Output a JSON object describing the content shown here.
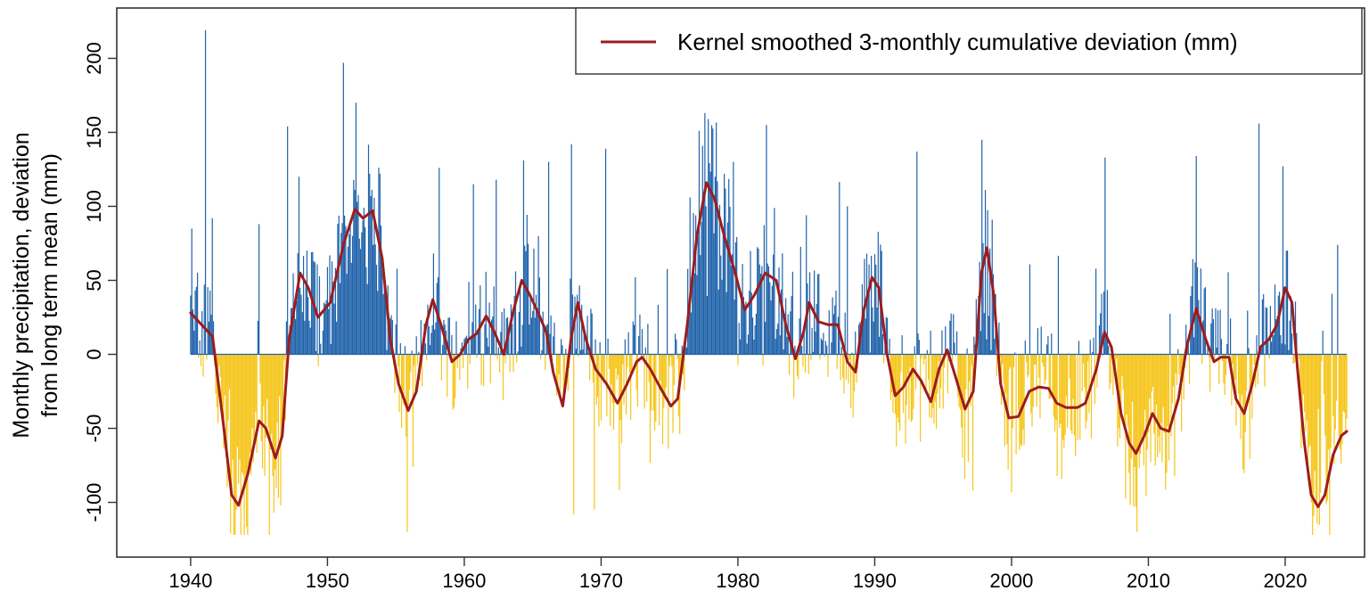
{
  "chart_data": {
    "type": "bar",
    "title": "",
    "ylabel_lines": [
      "Monthly precipitation, deviation",
      "from long term mean (mm)"
    ],
    "xlabel": "",
    "xlim": [
      1934.6,
      2025.8
    ],
    "ylim": [
      -137,
      234
    ],
    "x_ticks": [
      1940,
      1950,
      1960,
      1970,
      1980,
      1990,
      2000,
      2010,
      2020
    ],
    "y_ticks": [
      -100,
      -50,
      0,
      50,
      100,
      150,
      200
    ],
    "colors": {
      "positive": "#1f62aa",
      "negative": "#f5c518",
      "smooth": "#9c1c1c",
      "axis": "#333333"
    },
    "legend": {
      "label": "Kernel smoothed 3-monthly cumulative deviation (mm)",
      "position": "top-right"
    },
    "series": [
      {
        "name": "Monthly precipitation deviation",
        "kind": "bars",
        "start": "1940-01",
        "end": "2024-06",
        "resolution": "monthly",
        "notable_values": [
          {
            "x": 1940.1,
            "y": 85
          },
          {
            "x": 1941.1,
            "y": 219
          },
          {
            "x": 1941.6,
            "y": 92
          },
          {
            "x": 1942.9,
            "y": -121
          },
          {
            "x": 1945.0,
            "y": 88
          },
          {
            "x": 1946.6,
            "y": -102
          },
          {
            "x": 1947.1,
            "y": 154
          },
          {
            "x": 1947.9,
            "y": 120
          },
          {
            "x": 1951.2,
            "y": 197
          },
          {
            "x": 1952.2,
            "y": 103
          },
          {
            "x": 1953.1,
            "y": 122
          },
          {
            "x": 1953.8,
            "y": 122
          },
          {
            "x": 1955.8,
            "y": -120
          },
          {
            "x": 1958.2,
            "y": 126
          },
          {
            "x": 1960.7,
            "y": 115
          },
          {
            "x": 1962.3,
            "y": 118
          },
          {
            "x": 1964.3,
            "y": 131
          },
          {
            "x": 1966.2,
            "y": 130
          },
          {
            "x": 1967.8,
            "y": 142
          },
          {
            "x": 1968.0,
            "y": -108
          },
          {
            "x": 1970.3,
            "y": 139
          },
          {
            "x": 1969.5,
            "y": -105
          },
          {
            "x": 1976.5,
            "y": 106
          },
          {
            "x": 1977.2,
            "y": 151
          },
          {
            "x": 1977.8,
            "y": 159
          },
          {
            "x": 1979.7,
            "y": 130
          },
          {
            "x": 1982.1,
            "y": 155
          },
          {
            "x": 1985.0,
            "y": 94
          },
          {
            "x": 1988.0,
            "y": 100
          },
          {
            "x": 1993.1,
            "y": 137
          },
          {
            "x": 1997.8,
            "y": 145
          },
          {
            "x": 1997.2,
            "y": -92
          },
          {
            "x": 2006.8,
            "y": 133
          },
          {
            "x": 2009.1,
            "y": -103
          },
          {
            "x": 2013.5,
            "y": 134
          },
          {
            "x": 2018.1,
            "y": 156
          },
          {
            "x": 2019.8,
            "y": 127
          },
          {
            "x": 2020.1,
            "y": 70
          },
          {
            "x": 2021.9,
            "y": -100
          },
          {
            "x": 2023.8,
            "y": 74
          }
        ]
      },
      {
        "name": "Kernel smoothed 3-monthly cumulative deviation (mm)",
        "kind": "line",
        "points": [
          [
            1940.0,
            28
          ],
          [
            1940.8,
            20
          ],
          [
            1941.6,
            12
          ],
          [
            1942.3,
            -40
          ],
          [
            1943.0,
            -95
          ],
          [
            1943.5,
            -102
          ],
          [
            1944.2,
            -80
          ],
          [
            1945.0,
            -45
          ],
          [
            1945.5,
            -50
          ],
          [
            1946.2,
            -70
          ],
          [
            1946.7,
            -55
          ],
          [
            1947.2,
            10
          ],
          [
            1948.0,
            55
          ],
          [
            1948.6,
            45
          ],
          [
            1949.3,
            25
          ],
          [
            1950.2,
            35
          ],
          [
            1951.2,
            75
          ],
          [
            1952.0,
            98
          ],
          [
            1952.6,
            92
          ],
          [
            1953.3,
            97
          ],
          [
            1954.0,
            65
          ],
          [
            1954.6,
            10
          ],
          [
            1955.2,
            -20
          ],
          [
            1955.9,
            -38
          ],
          [
            1956.5,
            -25
          ],
          [
            1957.2,
            20
          ],
          [
            1957.7,
            37
          ],
          [
            1958.3,
            20
          ],
          [
            1959.1,
            -5
          ],
          [
            1959.7,
            0
          ],
          [
            1960.3,
            10
          ],
          [
            1960.9,
            14
          ],
          [
            1961.6,
            26
          ],
          [
            1962.2,
            15
          ],
          [
            1962.9,
            0
          ],
          [
            1963.6,
            30
          ],
          [
            1964.2,
            50
          ],
          [
            1964.8,
            40
          ],
          [
            1965.4,
            28
          ],
          [
            1966.0,
            15
          ],
          [
            1966.5,
            -12
          ],
          [
            1967.2,
            -35
          ],
          [
            1967.8,
            10
          ],
          [
            1968.3,
            35
          ],
          [
            1968.9,
            10
          ],
          [
            1969.6,
            -10
          ],
          [
            1970.4,
            -20
          ],
          [
            1971.2,
            -33
          ],
          [
            1971.9,
            -20
          ],
          [
            1972.6,
            -5
          ],
          [
            1973.0,
            -2
          ],
          [
            1973.6,
            -10
          ],
          [
            1974.3,
            -22
          ],
          [
            1975.1,
            -35
          ],
          [
            1975.6,
            -30
          ],
          [
            1976.3,
            20
          ],
          [
            1977.0,
            80
          ],
          [
            1977.7,
            116
          ],
          [
            1978.3,
            105
          ],
          [
            1979.0,
            80
          ],
          [
            1979.8,
            55
          ],
          [
            1980.5,
            30
          ],
          [
            1981.2,
            40
          ],
          [
            1982.0,
            55
          ],
          [
            1982.8,
            50
          ],
          [
            1983.5,
            20
          ],
          [
            1984.2,
            -3
          ],
          [
            1984.8,
            15
          ],
          [
            1985.2,
            35
          ],
          [
            1985.9,
            22
          ],
          [
            1986.6,
            20
          ],
          [
            1987.3,
            20
          ],
          [
            1988.0,
            -5
          ],
          [
            1988.6,
            -12
          ],
          [
            1989.2,
            30
          ],
          [
            1989.8,
            52
          ],
          [
            1990.3,
            45
          ],
          [
            1990.9,
            0
          ],
          [
            1991.5,
            -28
          ],
          [
            1992.1,
            -22
          ],
          [
            1992.8,
            -10
          ],
          [
            1993.4,
            -18
          ],
          [
            1994.1,
            -32
          ],
          [
            1994.7,
            -10
          ],
          [
            1995.3,
            3
          ],
          [
            1995.9,
            -15
          ],
          [
            1996.6,
            -37
          ],
          [
            1997.2,
            -25
          ],
          [
            1997.8,
            55
          ],
          [
            1998.2,
            72
          ],
          [
            1998.7,
            40
          ],
          [
            1999.2,
            -20
          ],
          [
            1999.8,
            -43
          ],
          [
            2000.5,
            -42
          ],
          [
            2001.3,
            -25
          ],
          [
            2002.0,
            -22
          ],
          [
            2002.7,
            -23
          ],
          [
            2003.3,
            -33
          ],
          [
            2004.0,
            -36
          ],
          [
            2004.8,
            -36
          ],
          [
            2005.4,
            -33
          ],
          [
            2006.2,
            -10
          ],
          [
            2006.8,
            15
          ],
          [
            2007.3,
            5
          ],
          [
            2008.0,
            -40
          ],
          [
            2008.6,
            -60
          ],
          [
            2009.1,
            -67
          ],
          [
            2009.7,
            -55
          ],
          [
            2010.3,
            -40
          ],
          [
            2010.9,
            -50
          ],
          [
            2011.5,
            -52
          ],
          [
            2012.2,
            -30
          ],
          [
            2012.8,
            5
          ],
          [
            2013.5,
            31
          ],
          [
            2014.2,
            10
          ],
          [
            2014.8,
            -5
          ],
          [
            2015.3,
            -2
          ],
          [
            2015.9,
            -2
          ],
          [
            2016.4,
            -30
          ],
          [
            2017.0,
            -40
          ],
          [
            2017.6,
            -20
          ],
          [
            2018.2,
            5
          ],
          [
            2018.8,
            10
          ],
          [
            2019.4,
            20
          ],
          [
            2020.0,
            45
          ],
          [
            2020.5,
            35
          ],
          [
            2020.9,
            -10
          ],
          [
            2021.4,
            -60
          ],
          [
            2021.9,
            -95
          ],
          [
            2022.4,
            -103
          ],
          [
            2022.9,
            -95
          ],
          [
            2023.5,
            -68
          ],
          [
            2024.1,
            -55
          ],
          [
            2024.5,
            -52
          ]
        ]
      }
    ]
  }
}
